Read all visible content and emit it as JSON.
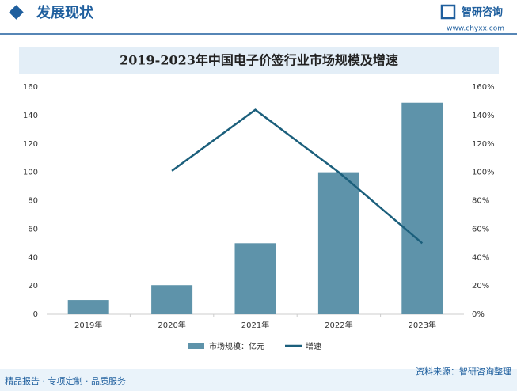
{
  "header": {
    "title": "发展现状",
    "brand": "智研咨询",
    "url": "www.chyxx.com"
  },
  "chart_data": {
    "type": "bar-line",
    "title": "2019-2023年中国电子价签行业市场规模及增速",
    "categories": [
      "2019年",
      "2020年",
      "2021年",
      "2022年",
      "2023年"
    ],
    "series": [
      {
        "name": "市场规模：亿元",
        "type": "bar",
        "color": "#5e93aa",
        "values": [
          10,
          20.5,
          50,
          100,
          149
        ]
      },
      {
        "name": "增速",
        "type": "line",
        "axis": "y2",
        "color": "#1b5f7c",
        "values": [
          null,
          101,
          144,
          100,
          50
        ]
      }
    ],
    "ylim": [
      0,
      160
    ],
    "yticks": [
      0,
      20,
      40,
      60,
      80,
      100,
      120,
      140,
      160
    ],
    "y2lim": [
      0,
      160
    ],
    "y2ticks": [
      {
        "value": 0,
        "label": "0%"
      },
      {
        "value": 20,
        "label": "20%"
      },
      {
        "value": 40,
        "label": "40%"
      },
      {
        "value": 60,
        "label": "60%"
      },
      {
        "value": 80,
        "label": "80%"
      },
      {
        "value": 100,
        "label": "100%"
      },
      {
        "value": 120,
        "label": "120%"
      },
      {
        "value": 140,
        "label": "140%"
      },
      {
        "value": 160,
        "label": "160%"
      }
    ],
    "grid": false,
    "legend": "bottom"
  },
  "footer": {
    "tagline": "精品报告 · 专项定制 · 品质服务",
    "source": "资料来源：智研咨询整理"
  }
}
